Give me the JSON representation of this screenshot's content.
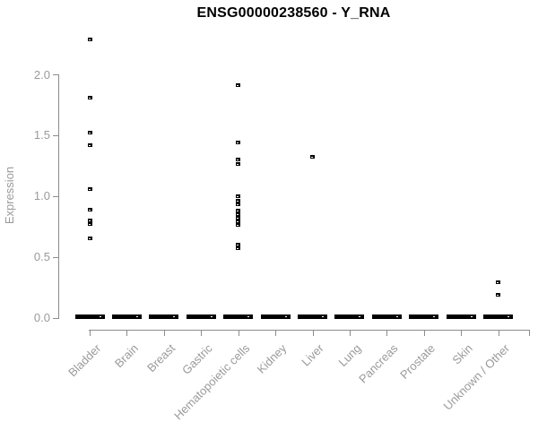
{
  "title": "ENSG00000238560 - Y_RNA",
  "colors": {
    "axis": "#8c8c8c",
    "tick_text": "#9a9a9a",
    "title": "#000000",
    "points": "#000000",
    "background": "#ffffff"
  },
  "chart_data": {
    "type": "scatter",
    "title": "ENSG00000238560 - Y_RNA",
    "xlabel": "",
    "ylabel": "Expression",
    "ylim": [
      0.0,
      2.0
    ],
    "yticks": [
      0.0,
      0.5,
      1.0,
      1.5,
      2.0
    ],
    "ytick_labels": [
      "0.0",
      "0.5",
      "1.0",
      "1.5",
      "2.0"
    ],
    "grid": false,
    "legend": "none",
    "marker": "small-black-open-square",
    "categories": [
      "Bladder",
      "Brain",
      "Breast",
      "Gastric",
      "Hematopoietic cells",
      "Kidney",
      "Liver",
      "Lung",
      "Pancreas",
      "Prostate",
      "Skin",
      "Unknown / Other"
    ],
    "series": [
      {
        "category": "Bladder",
        "nonzero_values": [
          2.29,
          1.81,
          1.52,
          1.42,
          1.06,
          0.89,
          0.8,
          0.77,
          0.65
        ],
        "zero_cluster": true
      },
      {
        "category": "Brain",
        "nonzero_values": [],
        "zero_cluster": true
      },
      {
        "category": "Breast",
        "nonzero_values": [],
        "zero_cluster": true
      },
      {
        "category": "Gastric",
        "nonzero_values": [],
        "zero_cluster": true
      },
      {
        "category": "Hematopoietic cells",
        "nonzero_values": [
          1.91,
          1.44,
          1.3,
          1.26,
          1.0,
          0.96,
          0.93,
          0.88,
          0.85,
          0.82,
          0.79,
          0.76,
          0.6,
          0.57
        ],
        "zero_cluster": true
      },
      {
        "category": "Kidney",
        "nonzero_values": [],
        "zero_cluster": true
      },
      {
        "category": "Liver",
        "nonzero_values": [
          1.32
        ],
        "zero_cluster": true
      },
      {
        "category": "Lung",
        "nonzero_values": [],
        "zero_cluster": true
      },
      {
        "category": "Pancreas",
        "nonzero_values": [],
        "zero_cluster": true
      },
      {
        "category": "Prostate",
        "nonzero_values": [],
        "zero_cluster": true
      },
      {
        "category": "Skin",
        "nonzero_values": [],
        "zero_cluster": true
      },
      {
        "category": "Unknown / Other",
        "nonzero_values": [
          0.29,
          0.19
        ],
        "zero_cluster": true
      }
    ]
  }
}
